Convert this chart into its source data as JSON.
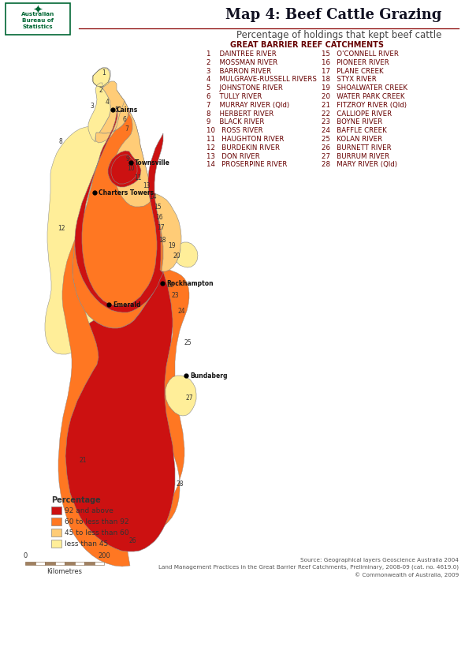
{
  "title": "Map 4: Beef Cattle Grazing",
  "subtitle": "Percentage of holdings that kept beef cattle",
  "map_heading": "GREAT BARRIER REEF CATCHMENTS",
  "catchment_list_col1": [
    "1    DAINTREE RIVER",
    "2    MOSSMAN RIVER",
    "3    BARRON RIVER",
    "4    MULGRAVE-RUSSELL RIVERS",
    "5    JOHNSTONE RIVER",
    "6    TULLY RIVER",
    "7    MURRAY RIVER (Qld)",
    "8    HERBERT RIVER",
    "9    BLACK RIVER",
    "10   ROSS RIVER",
    "11   HAUGHTON RIVER",
    "12   BURDEKIN RIVER",
    "13   DON RIVER",
    "14   PROSERPINE RIVER"
  ],
  "catchment_list_col2": [
    "15   O'CONNELL RIVER",
    "16   PIONEER RIVER",
    "17   PLANE CREEK",
    "18   STYX RIVER",
    "19   SHOALWATER CREEK",
    "20   WATER PARK CREEK",
    "21   FITZROY RIVER (Qld)",
    "22   CALLIOPE RIVER",
    "23   BOYNE RIVER",
    "24   BAFFLE CREEK",
    "25   KOLAN RIVER",
    "26   BURNETT RIVER",
    "27   BURRUM RIVER",
    "28   MARY RIVER (Qld)"
  ],
  "legend_title": "Percentage",
  "legend_items": [
    {
      "label": "92 and above",
      "color": "#CC1111"
    },
    {
      "label": "60 to less than 92",
      "color": "#FF7722"
    },
    {
      "label": "45 to less than 60",
      "color": "#FFCC77"
    },
    {
      "label": "less than 45",
      "color": "#FFEE99"
    }
  ],
  "source_text": "Source: Geographical layers Geoscience Australia 2004\nLand Management Practices in the Great Barrier Reef Catchments, Preliminary, 2008-09 (cat. no. 4619.0)\n© Commonwealth of Australia, 2009",
  "abs_logo_text": "Australian\nBureau of\nStatistics",
  "title_color": "#111122",
  "subtitle_color": "#444444",
  "heading_color": "#660000",
  "list_color": "#660000",
  "border_color": "#006633",
  "bg_color": "#ffffff",
  "title_fontsize": 13,
  "subtitle_fontsize": 8.5,
  "heading_fontsize": 7,
  "list_fontsize": 6.2
}
